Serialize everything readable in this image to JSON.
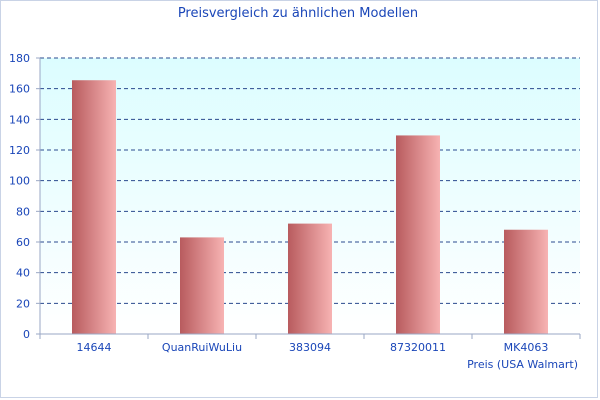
{
  "chart_data": {
    "type": "bar",
    "title": "Preisvergleich zu ähnlichen Modellen",
    "xlabel": "Preis (USA Walmart)",
    "ylabel": "",
    "categories": [
      "14644",
      "QuanRuiWuLiu",
      "383094",
      "87320011",
      "MK4063"
    ],
    "values": [
      165.5,
      63,
      72,
      129.5,
      68
    ],
    "ylim": [
      0,
      180
    ],
    "yticks": [
      0,
      20,
      40,
      60,
      80,
      100,
      120,
      140,
      160,
      180
    ],
    "grid": true,
    "legend": "none",
    "colors": {
      "bar_dark": "#b85b5e",
      "bar_light": "#f7b3b3",
      "plot_top": "#dcfdff",
      "plot_bottom": "#ffffff",
      "grid": "#2a4a8f",
      "text": "#1a46b8"
    }
  }
}
